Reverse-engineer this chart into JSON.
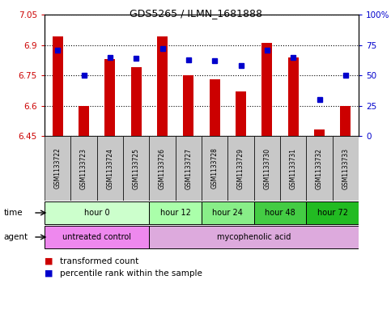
{
  "title": "GDS5265 / ILMN_1681888",
  "samples": [
    "GSM1133722",
    "GSM1133723",
    "GSM1133724",
    "GSM1133725",
    "GSM1133726",
    "GSM1133727",
    "GSM1133728",
    "GSM1133729",
    "GSM1133730",
    "GSM1133731",
    "GSM1133732",
    "GSM1133733"
  ],
  "bar_values": [
    6.94,
    6.6,
    6.83,
    6.79,
    6.94,
    6.75,
    6.73,
    6.67,
    6.91,
    6.84,
    6.48,
    6.6
  ],
  "percentile_values": [
    71,
    50,
    65,
    64,
    72,
    63,
    62,
    58,
    71,
    65,
    30,
    50
  ],
  "bar_base": 6.45,
  "ylim_left": [
    6.45,
    7.05
  ],
  "ylim_right": [
    0,
    100
  ],
  "yticks_left": [
    6.45,
    6.6,
    6.75,
    6.9,
    7.05
  ],
  "yticks_right": [
    0,
    25,
    50,
    75,
    100
  ],
  "ytick_labels_left": [
    "6.45",
    "6.6",
    "6.75",
    "6.9",
    "7.05"
  ],
  "ytick_labels_right": [
    "0",
    "25",
    "50",
    "75",
    "100%"
  ],
  "bar_color": "#cc0000",
  "dot_color": "#0000cc",
  "grid_color": "#000000",
  "plot_bg": "#ffffff",
  "label_bg": "#c8c8c8",
  "time_groups": [
    {
      "label": "hour 0",
      "start": 0,
      "end": 4,
      "color": "#ccffcc"
    },
    {
      "label": "hour 12",
      "start": 4,
      "end": 6,
      "color": "#aaffaa"
    },
    {
      "label": "hour 24",
      "start": 6,
      "end": 8,
      "color": "#88ee88"
    },
    {
      "label": "hour 48",
      "start": 8,
      "end": 10,
      "color": "#44cc44"
    },
    {
      "label": "hour 72",
      "start": 10,
      "end": 12,
      "color": "#22bb22"
    }
  ],
  "agent_groups": [
    {
      "label": "untreated control",
      "start": 0,
      "end": 4,
      "color": "#ee88ee"
    },
    {
      "label": "mycophenolic acid",
      "start": 4,
      "end": 12,
      "color": "#ddaadd"
    }
  ],
  "legend_bar_label": "transformed count",
  "legend_dot_label": "percentile rank within the sample",
  "bg_color": "#ffffff"
}
